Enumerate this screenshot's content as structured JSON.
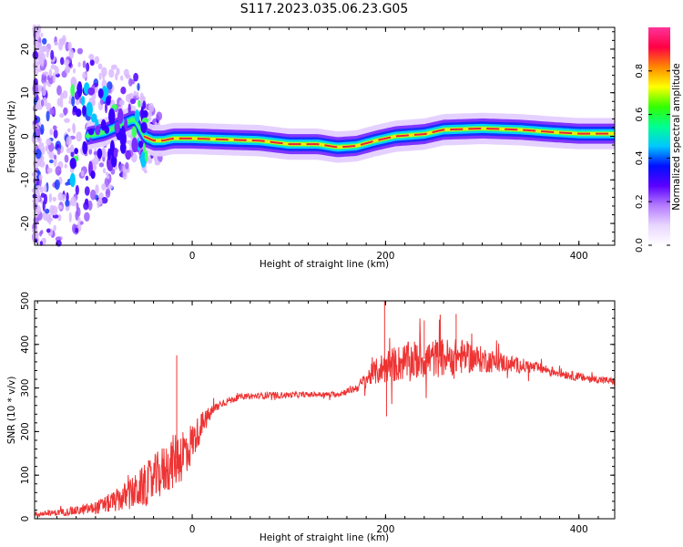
{
  "title": "S117.2023.035.06.23.G05",
  "colors": {
    "snr_line": "#ee3333",
    "spectrogram_ridge": "#e8233a",
    "frame": "#000000"
  },
  "colorbar": {
    "label": "Normalized spectral amplitude",
    "ticks": [
      "0.0",
      "0.2",
      "0.4",
      "0.6",
      "0.8"
    ],
    "tick_values": [
      0.0,
      0.2,
      0.4,
      0.6,
      0.8
    ],
    "range": [
      0,
      1
    ],
    "colormap": [
      "#ffffff",
      "#e9d6ff",
      "#b47bff",
      "#5a00ff",
      "#0010ff",
      "#00c8ff",
      "#00ff90",
      "#33ff00",
      "#ffff00",
      "#ff8800",
      "#ff0044",
      "#ff3399"
    ]
  },
  "chart_data": [
    {
      "type": "heatmap",
      "xlabel": "Height of straight line (km)",
      "ylabel": "Frequency (Hz)",
      "xlim": [
        -163,
        437
      ],
      "ylim": [
        -25,
        25
      ],
      "xticks": [
        0,
        200,
        400
      ],
      "xtick_labels": [
        "0",
        "200",
        "400"
      ],
      "yticks": [
        -20,
        -10,
        0,
        10,
        20
      ],
      "ytick_labels": [
        "-20",
        "-10",
        "0",
        "10",
        "20"
      ],
      "ridge": {
        "x": [
          -160,
          -130,
          -110,
          -90,
          -70,
          -60,
          -50,
          -40,
          -30,
          -20,
          0,
          40,
          70,
          100,
          130,
          150,
          170,
          190,
          210,
          240,
          260,
          300,
          340,
          370,
          400,
          437
        ],
        "y": [
          -2,
          -1,
          0,
          1,
          3,
          4,
          0,
          -1,
          -1,
          -0.5,
          -0.5,
          -0.8,
          -1,
          -1.8,
          -1.8,
          -2.5,
          -2.2,
          -1,
          0,
          0.5,
          1.5,
          1.8,
          1.5,
          1,
          0.6,
          0.6
        ]
      }
    },
    {
      "type": "line",
      "xlabel": "Height of straight line (km)",
      "ylabel": "SNR (10 * v/v)",
      "xlim": [
        -163,
        437
      ],
      "ylim": [
        0,
        500
      ],
      "xticks": [
        0,
        200,
        400
      ],
      "xtick_labels": [
        "0",
        "200",
        "400"
      ],
      "yticks": [
        0,
        100,
        200,
        300,
        400,
        500
      ],
      "ytick_labels": [
        "0",
        "100",
        "200",
        "300",
        "400",
        "500"
      ],
      "series": [
        {
          "x": [
            -163,
            -150,
            -120,
            -100,
            -80,
            -60,
            -40,
            -25,
            -15,
            -10,
            -5,
            0,
            10,
            20,
            30,
            50,
            80,
            120,
            150,
            170,
            185,
            200,
            230,
            260,
            280,
            300,
            330,
            360,
            400,
            437
          ],
          "values": [
            10,
            12,
            18,
            25,
            40,
            60,
            90,
            120,
            140,
            150,
            160,
            175,
            215,
            245,
            265,
            280,
            283,
            285,
            285,
            300,
            330,
            350,
            365,
            370,
            372,
            365,
            355,
            345,
            325,
            315
          ],
          "noise": [
            6,
            6,
            10,
            15,
            25,
            40,
            55,
            60,
            65,
            65,
            60,
            45,
            30,
            15,
            10,
            6,
            8,
            6,
            6,
            10,
            25,
            40,
            45,
            45,
            40,
            30,
            20,
            12,
            10,
            8
          ]
        }
      ],
      "spikes": [
        {
          "x": -16,
          "y": 375
        },
        {
          "x": 199,
          "y": 500
        },
        {
          "x": 201,
          "y": 235
        },
        {
          "x": 240,
          "y": 455
        },
        {
          "x": 273,
          "y": 470
        }
      ]
    }
  ]
}
